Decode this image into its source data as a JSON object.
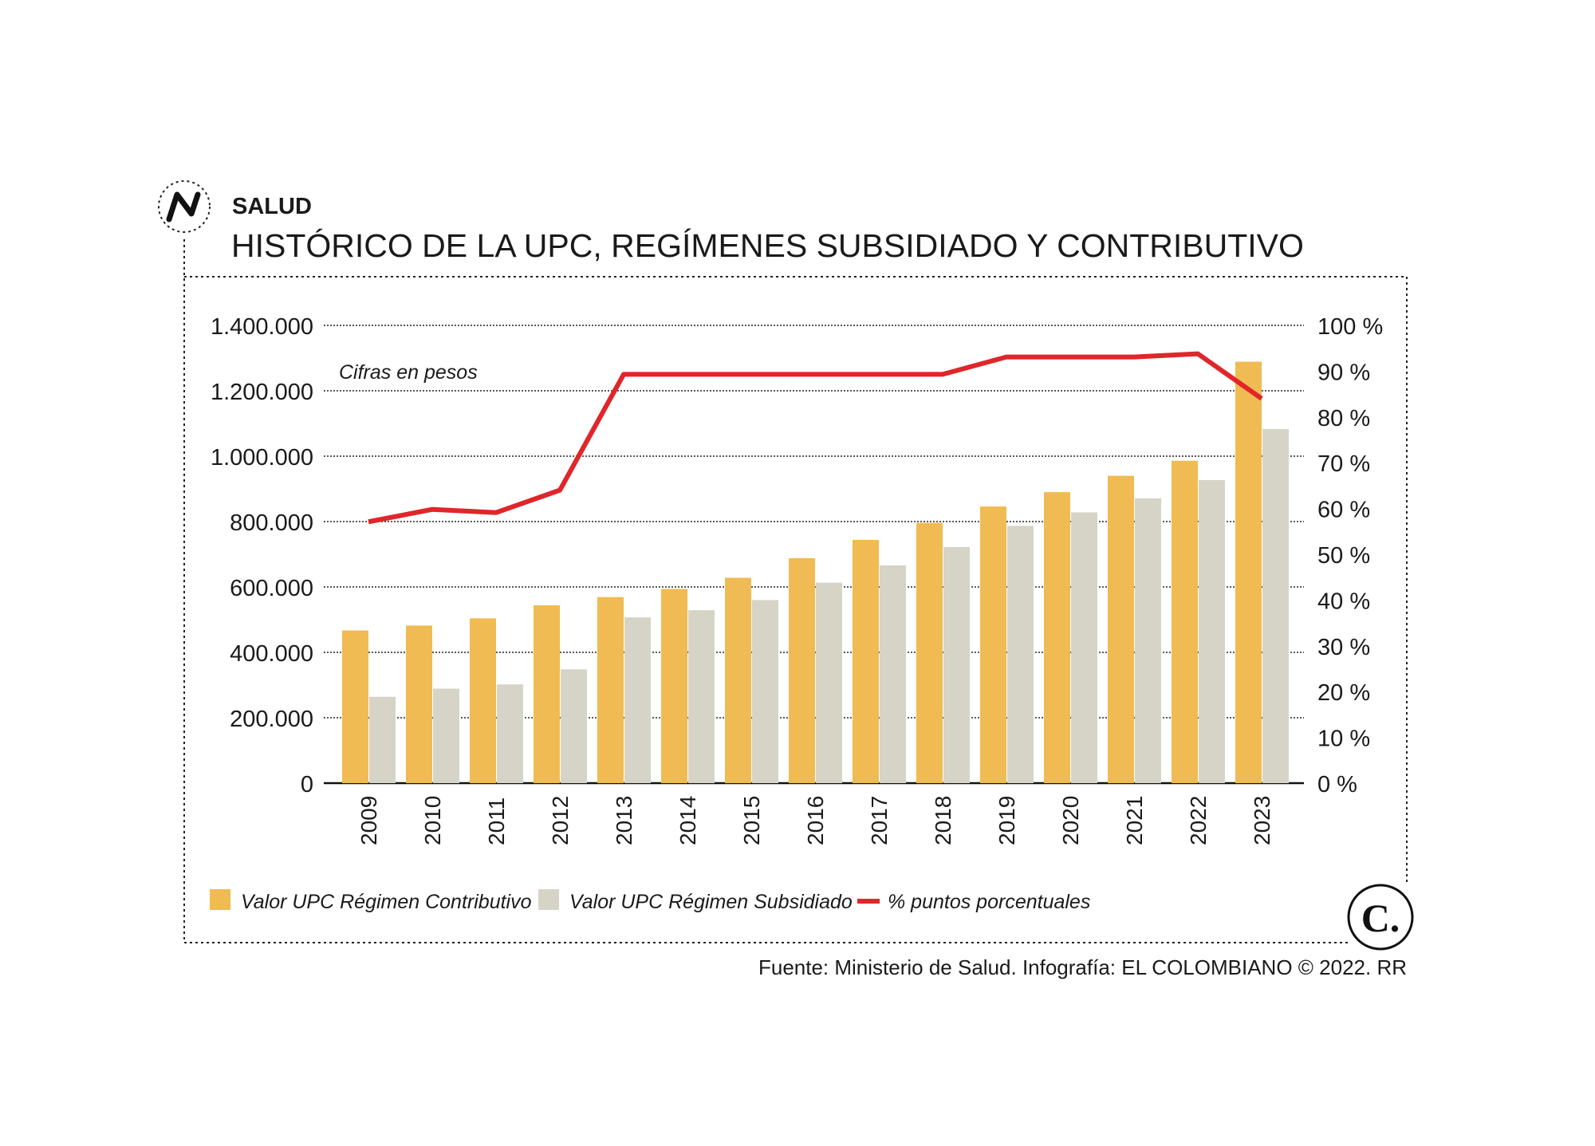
{
  "header": {
    "section": "SALUD",
    "title": "HISTÓRICO DE LA UPC, REGÍMENES SUBSIDIADO Y CONTRIBUTIVO",
    "logo_letter": "N"
  },
  "footer": {
    "source": "Fuente: Ministerio de Salud. Infografía: EL COLOMBIANO © 2022. RR",
    "brand_logo": "C."
  },
  "chart_data": {
    "type": "bar",
    "title": "HISTÓRICO DE LA UPC, REGÍMENES SUBSIDIADO Y CONTRIBUTIVO",
    "annotation": "Cifras en pesos",
    "categories": [
      "2009",
      "2010",
      "2011",
      "2012",
      "2013",
      "2014",
      "2015",
      "2016",
      "2017",
      "2018",
      "2019",
      "2020",
      "2021",
      "2022",
      "2023"
    ],
    "series": [
      {
        "name": "Valor UPC Régimen Contributivo",
        "type": "bar",
        "axis": "left",
        "color": "#f0bb52",
        "values": [
          467000,
          482000,
          504000,
          544000,
          569000,
          594000,
          628000,
          688000,
          744000,
          796000,
          846000,
          890000,
          940000,
          986000,
          1289000
        ]
      },
      {
        "name": "Valor UPC Régimen Subsidiado",
        "type": "bar",
        "axis": "left",
        "color": "#d6d4c6",
        "values": [
          264000,
          289000,
          302000,
          348000,
          507000,
          529000,
          560000,
          613000,
          666000,
          722000,
          787000,
          828000,
          871000,
          927000,
          1083000
        ]
      },
      {
        "name": "% puntos porcentuales",
        "type": "line",
        "axis": "right",
        "color": "#e0262a",
        "values": [
          57.1,
          59.8,
          59.1,
          64.0,
          89.3,
          89.3,
          89.3,
          89.3,
          89.3,
          89.3,
          93.1,
          93.1,
          93.1,
          93.8,
          84.0
        ]
      }
    ],
    "y_left": {
      "ylim": [
        0,
        1400000
      ],
      "ticks": [
        "0",
        "200.000",
        "400.000",
        "600.000",
        "800.000",
        "1.000.000",
        "1.200.000",
        "1.400.000"
      ]
    },
    "y_right": {
      "ylim": [
        0,
        100
      ],
      "ticks": [
        "0 %",
        "10 %",
        "20 %",
        "30 %",
        "40 %",
        "50 %",
        "60 %",
        "70 %",
        "80 %",
        "90 %",
        "100 %"
      ]
    },
    "grid": true,
    "legend_position": "bottom-left"
  }
}
